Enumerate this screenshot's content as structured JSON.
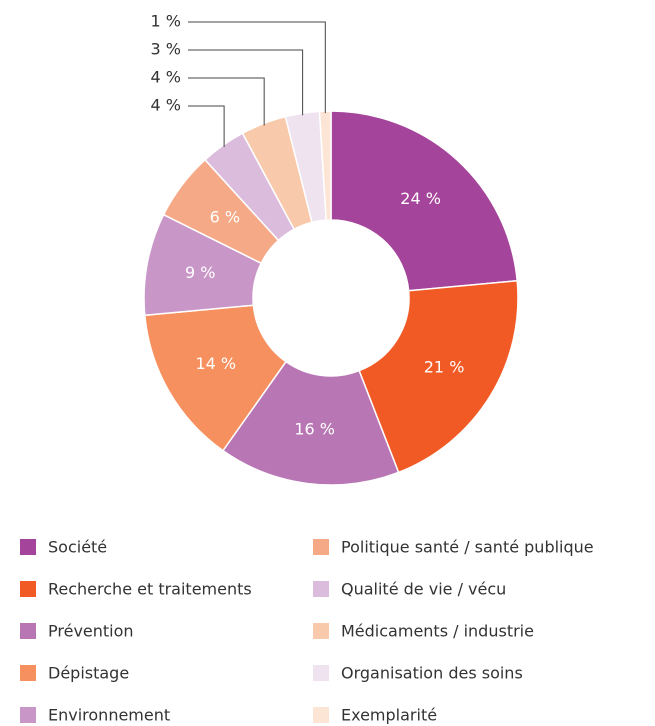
{
  "chart_data": {
    "type": "donut",
    "categories": [
      "Société",
      "Recherche et traitements",
      "Prévention",
      "Dépistage",
      "Environnement",
      "Politique santé / santé publique",
      "Qualité de vie / vécu",
      "Médicaments / industrie",
      "Organisation des soins",
      "Exemplarité"
    ],
    "values": [
      24,
      21,
      16,
      14,
      9,
      6,
      4,
      4,
      3,
      1
    ],
    "value_labels": [
      "24 %",
      "21 %",
      "16 %",
      "14 %",
      "9 %",
      "6 %",
      "4 %",
      "4 %",
      "3 %",
      "1 %"
    ],
    "colors": [
      "#a5449b",
      "#f15a24",
      "#b876b5",
      "#f6905e",
      "#c996c8",
      "#f6a987",
      "#dcbcdc",
      "#f9c9ab",
      "#efe3f0",
      "#fde5d6"
    ]
  }
}
